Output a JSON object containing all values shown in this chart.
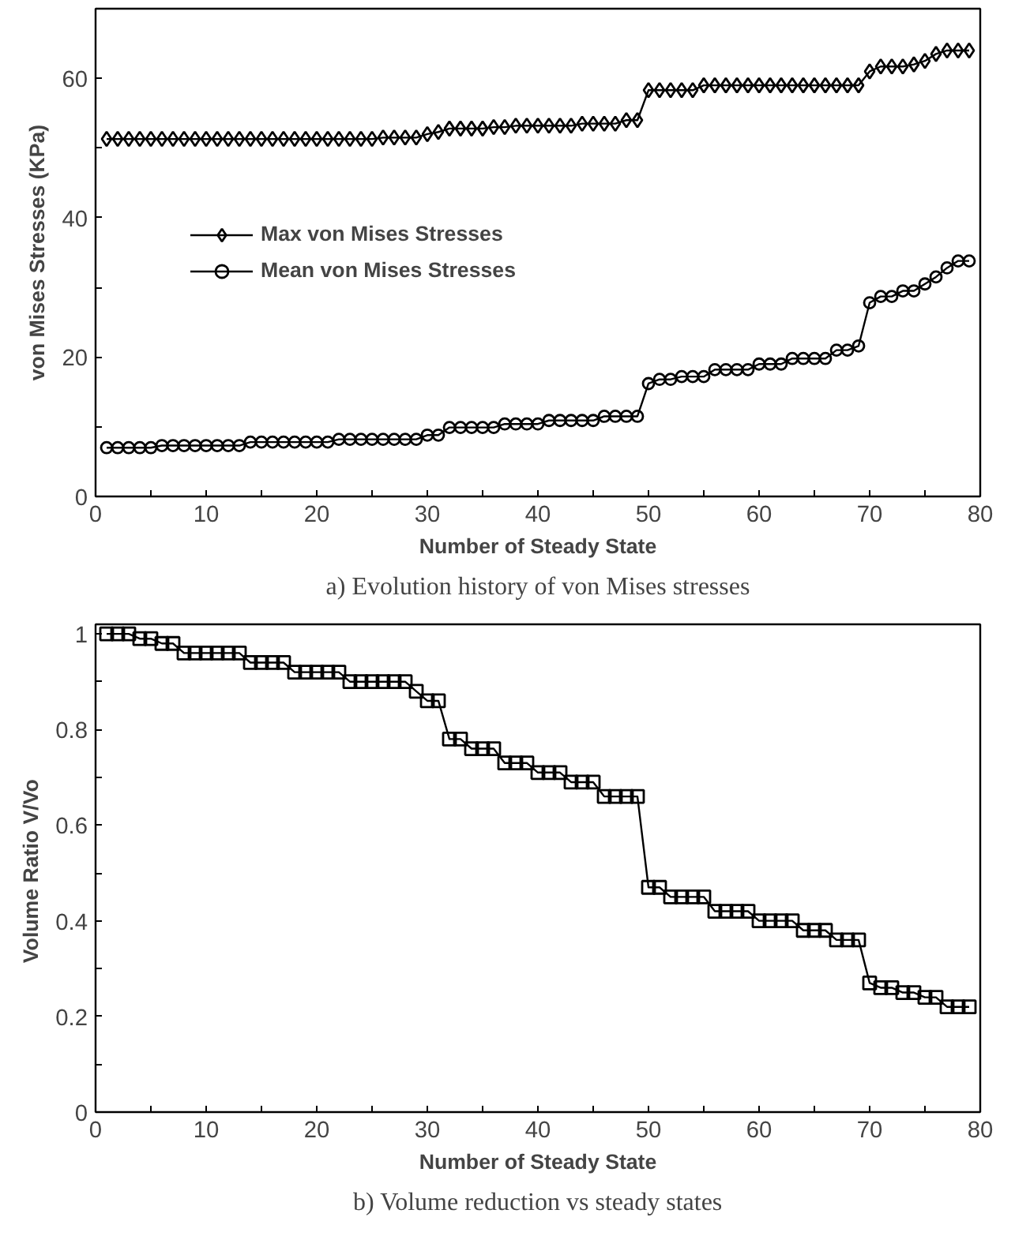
{
  "chart_data": [
    {
      "type": "line",
      "xlabel": "Number of Steady State",
      "ylabel": "von Mises Stresses (KPa)",
      "annotations": [
        "a) Evolution history of von Mises stresses"
      ],
      "x": [
        1,
        2,
        3,
        4,
        5,
        6,
        7,
        8,
        9,
        10,
        11,
        12,
        13,
        14,
        15,
        16,
        17,
        18,
        19,
        20,
        21,
        22,
        23,
        24,
        25,
        26,
        27,
        28,
        29,
        30,
        31,
        32,
        33,
        34,
        35,
        36,
        37,
        38,
        39,
        40,
        41,
        42,
        43,
        44,
        45,
        46,
        47,
        48,
        49,
        50,
        51,
        52,
        53,
        54,
        55,
        56,
        57,
        58,
        59,
        60,
        61,
        62,
        63,
        64,
        65,
        66,
        67,
        68,
        69,
        70,
        71,
        72,
        73,
        74,
        75,
        76,
        77,
        78,
        79
      ],
      "series": [
        {
          "name": "Max von Mises Stresses",
          "color": "#000000",
          "marker": "diamond",
          "values": [
            51.3,
            51.3,
            51.3,
            51.3,
            51.3,
            51.3,
            51.3,
            51.3,
            51.3,
            51.3,
            51.3,
            51.3,
            51.3,
            51.3,
            51.3,
            51.3,
            51.3,
            51.3,
            51.3,
            51.3,
            51.3,
            51.3,
            51.3,
            51.3,
            51.3,
            51.5,
            51.5,
            51.5,
            51.5,
            52,
            52.3,
            52.8,
            52.8,
            52.8,
            52.8,
            53,
            53,
            53.2,
            53.2,
            53.2,
            53.2,
            53.2,
            53.2,
            53.5,
            53.5,
            53.5,
            53.5,
            54,
            54,
            58.3,
            58.3,
            58.3,
            58.3,
            58.3,
            59,
            59,
            59,
            59,
            59,
            59,
            59,
            59,
            59,
            59,
            59,
            59,
            59,
            59,
            59,
            61,
            61.7,
            61.7,
            61.7,
            62,
            62.5,
            63.5,
            64,
            64,
            64
          ]
        },
        {
          "name": "Mean von Mises Stresses",
          "color": "#000000",
          "marker": "circle",
          "values": [
            7,
            7,
            7,
            7,
            7,
            7.3,
            7.3,
            7.3,
            7.3,
            7.3,
            7.3,
            7.3,
            7.3,
            7.8,
            7.8,
            7.8,
            7.8,
            7.8,
            7.8,
            7.8,
            7.8,
            8.2,
            8.2,
            8.2,
            8.2,
            8.2,
            8.2,
            8.2,
            8.2,
            8.8,
            8.8,
            9.9,
            9.9,
            9.9,
            9.9,
            9.9,
            10.4,
            10.4,
            10.4,
            10.4,
            10.9,
            10.9,
            10.9,
            10.9,
            10.9,
            11.5,
            11.5,
            11.5,
            11.5,
            16.2,
            16.8,
            16.8,
            17.2,
            17.2,
            17.2,
            18.2,
            18.2,
            18.2,
            18.2,
            19,
            19,
            19,
            19.8,
            19.8,
            19.8,
            19.8,
            21,
            21,
            21.6,
            27.8,
            28.7,
            28.7,
            29.5,
            29.5,
            30.5,
            31.5,
            32.8,
            33.8,
            33.8
          ]
        }
      ],
      "xlim": [
        0,
        80
      ],
      "xticks": [
        0,
        {
          "value": 5,
          "label": null
        },
        10,
        {
          "value": 15,
          "label": null
        },
        20,
        {
          "value": 25,
          "label": null
        },
        30,
        {
          "value": 35,
          "label": null
        },
        40,
        {
          "value": 45,
          "label": null
        },
        50,
        {
          "value": 55,
          "label": null
        },
        60,
        {
          "value": 65,
          "label": null
        },
        70,
        {
          "value": 75,
          "label": null
        },
        80
      ],
      "ylim": [
        0,
        70
      ],
      "yticks": [
        0,
        {
          "value": 10,
          "label": null
        },
        20,
        {
          "value": 30,
          "label": null
        },
        40,
        {
          "value": 50,
          "label": null
        },
        60
      ],
      "legend": "left",
      "grid": false,
      "line_style": "solid"
    },
    {
      "type": "line",
      "xlabel": "Number of Steady State",
      "ylabel": "Volume Ratio  V/Vo",
      "annotations": [
        "b) Volume reduction vs steady states"
      ],
      "x": [
        1,
        2,
        3,
        4,
        5,
        6,
        7,
        8,
        9,
        10,
        11,
        12,
        13,
        14,
        15,
        16,
        17,
        18,
        19,
        20,
        21,
        22,
        23,
        24,
        25,
        26,
        27,
        28,
        29,
        30,
        31,
        32,
        33,
        34,
        35,
        36,
        37,
        38,
        39,
        40,
        41,
        42,
        43,
        44,
        45,
        46,
        47,
        48,
        49,
        50,
        51,
        52,
        53,
        54,
        55,
        56,
        57,
        58,
        59,
        60,
        61,
        62,
        63,
        64,
        65,
        66,
        67,
        68,
        69,
        70,
        71,
        72,
        73,
        74,
        75,
        76,
        77,
        78,
        79
      ],
      "series": [
        {
          "color": "#000000",
          "marker": "square",
          "values": [
            1,
            1,
            1,
            0.99,
            0.99,
            0.98,
            0.98,
            0.96,
            0.96,
            0.96,
            0.96,
            0.96,
            0.96,
            0.94,
            0.94,
            0.94,
            0.94,
            0.92,
            0.92,
            0.92,
            0.92,
            0.92,
            0.9,
            0.9,
            0.9,
            0.9,
            0.9,
            0.9,
            0.88,
            0.86,
            0.86,
            0.78,
            0.78,
            0.76,
            0.76,
            0.76,
            0.73,
            0.73,
            0.73,
            0.71,
            0.71,
            0.71,
            0.69,
            0.69,
            0.69,
            0.66,
            0.66,
            0.66,
            0.66,
            0.47,
            0.47,
            0.45,
            0.45,
            0.45,
            0.45,
            0.42,
            0.42,
            0.42,
            0.42,
            0.4,
            0.4,
            0.4,
            0.4,
            0.38,
            0.38,
            0.38,
            0.36,
            0.36,
            0.36,
            0.27,
            0.26,
            0.26,
            0.25,
            0.25,
            0.24,
            0.24,
            0.22,
            0.22,
            0.22
          ]
        }
      ],
      "xlim": [
        0,
        80
      ],
      "xticks": [
        0,
        {
          "value": 5,
          "label": null
        },
        10,
        {
          "value": 15,
          "label": null
        },
        20,
        {
          "value": 25,
          "label": null
        },
        30,
        {
          "value": 35,
          "label": null
        },
        40,
        {
          "value": 45,
          "label": null
        },
        50,
        {
          "value": 55,
          "label": null
        },
        60,
        {
          "value": 65,
          "label": null
        },
        70,
        {
          "value": 75,
          "label": null
        },
        80
      ],
      "ylim": [
        0,
        1.02
      ],
      "yticks": [
        0,
        {
          "value": 0.1,
          "label": null
        },
        0.2,
        {
          "value": 0.3,
          "label": null
        },
        0.4,
        {
          "value": 0.5,
          "label": null
        },
        0.6,
        {
          "value": 0.7,
          "label": null
        },
        0.8,
        {
          "value": 0.9,
          "label": null
        },
        1
      ],
      "legend": false,
      "grid": false,
      "line_style": "solid"
    }
  ]
}
